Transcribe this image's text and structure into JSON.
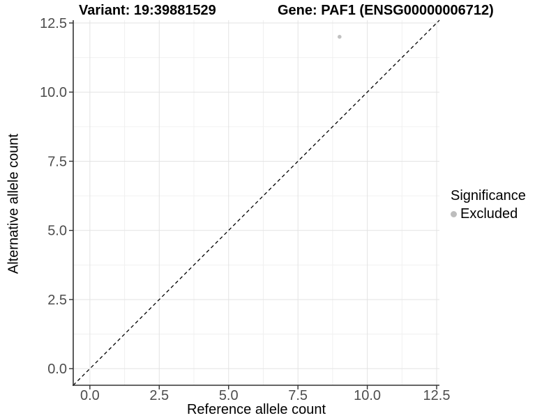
{
  "figure": {
    "title_left": "Variant: 19:39881529",
    "title_right": "Gene: PAF1 (ENSG00000006712)"
  },
  "chart_data": {
    "type": "scatter",
    "title": "Variant: 19:39881529   Gene: PAF1 (ENSG00000006712)",
    "xlabel": "Reference allele count",
    "ylabel": "Alternative allele count",
    "xlim": [
      -0.6,
      12.6
    ],
    "ylim": [
      -0.6,
      12.6
    ],
    "x_ticks": [
      0.0,
      2.5,
      5.0,
      7.5,
      10.0,
      12.5
    ],
    "y_ticks": [
      0.0,
      2.5,
      5.0,
      7.5,
      10.0,
      12.5
    ],
    "x_tick_labels": [
      "0.0",
      "2.5",
      "5.0",
      "7.5",
      "10.0",
      "12.5"
    ],
    "y_tick_labels": [
      "0.0",
      "2.5",
      "5.0",
      "7.5",
      "10.0",
      "12.5"
    ],
    "minor_gridlines": [
      1.25,
      3.75,
      6.25,
      8.75,
      11.25
    ],
    "grid": "major+minor",
    "series": [
      {
        "name": "Excluded",
        "color": "#c1c1c1",
        "points": [
          {
            "x": 9,
            "y": 12
          }
        ]
      }
    ],
    "reference_line": {
      "type": "identity",
      "x1": -0.6,
      "y1": -0.6,
      "x2": 12.6,
      "y2": 12.6,
      "style": "dashed",
      "color": "#000000"
    },
    "legend": {
      "title": "Significance",
      "position": "right",
      "items": [
        {
          "label": "Excluded",
          "color": "#bdbdbd"
        }
      ]
    }
  },
  "layout_colors": {
    "background": "#ffffff",
    "grid_major": "#e3e3e3",
    "grid_minor": "#f0f0f0",
    "axis_line": "#333333",
    "tick_mark": "#333333",
    "tick_label": "#4d4d4d",
    "title_text": "#000000"
  }
}
